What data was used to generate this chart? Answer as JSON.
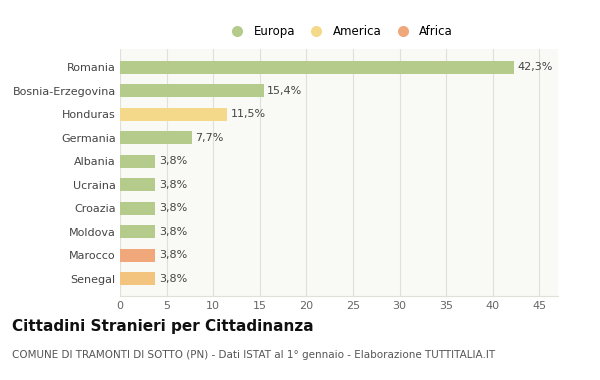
{
  "categories": [
    "Senegal",
    "Marocco",
    "Moldova",
    "Croazia",
    "Ucraina",
    "Albania",
    "Germania",
    "Honduras",
    "Bosnia-Erzegovina",
    "Romania"
  ],
  "values": [
    3.8,
    3.8,
    3.8,
    3.8,
    3.8,
    3.8,
    7.7,
    11.5,
    15.4,
    42.3
  ],
  "labels": [
    "3,8%",
    "3,8%",
    "3,8%",
    "3,8%",
    "3,8%",
    "3,8%",
    "7,7%",
    "11,5%",
    "15,4%",
    "42,3%"
  ],
  "colors": [
    "#f2c47e",
    "#f0a87a",
    "#b5cb8b",
    "#b5cb8b",
    "#b5cb8b",
    "#b5cb8b",
    "#b5cb8b",
    "#f5d98a",
    "#b5cb8b",
    "#b5cb8b"
  ],
  "legend_labels": [
    "Europa",
    "America",
    "Africa"
  ],
  "legend_colors": [
    "#b5cb8b",
    "#f5d98a",
    "#f0a87a"
  ],
  "title": "Cittadini Stranieri per Cittadinanza",
  "subtitle": "COMUNE DI TRAMONTI DI SOTTO (PN) - Dati ISTAT al 1° gennaio - Elaborazione TUTTITALIA.IT",
  "xlim": [
    0,
    47
  ],
  "xticks": [
    0,
    5,
    10,
    15,
    20,
    25,
    30,
    35,
    40,
    45
  ],
  "bg_color": "#ffffff",
  "plot_bg_color": "#f9f9f6",
  "grid_color": "#e0e0d8",
  "bar_height": 0.55,
  "label_fontsize": 8,
  "ytick_fontsize": 8,
  "xtick_fontsize": 8,
  "title_fontsize": 11,
  "subtitle_fontsize": 7.5
}
